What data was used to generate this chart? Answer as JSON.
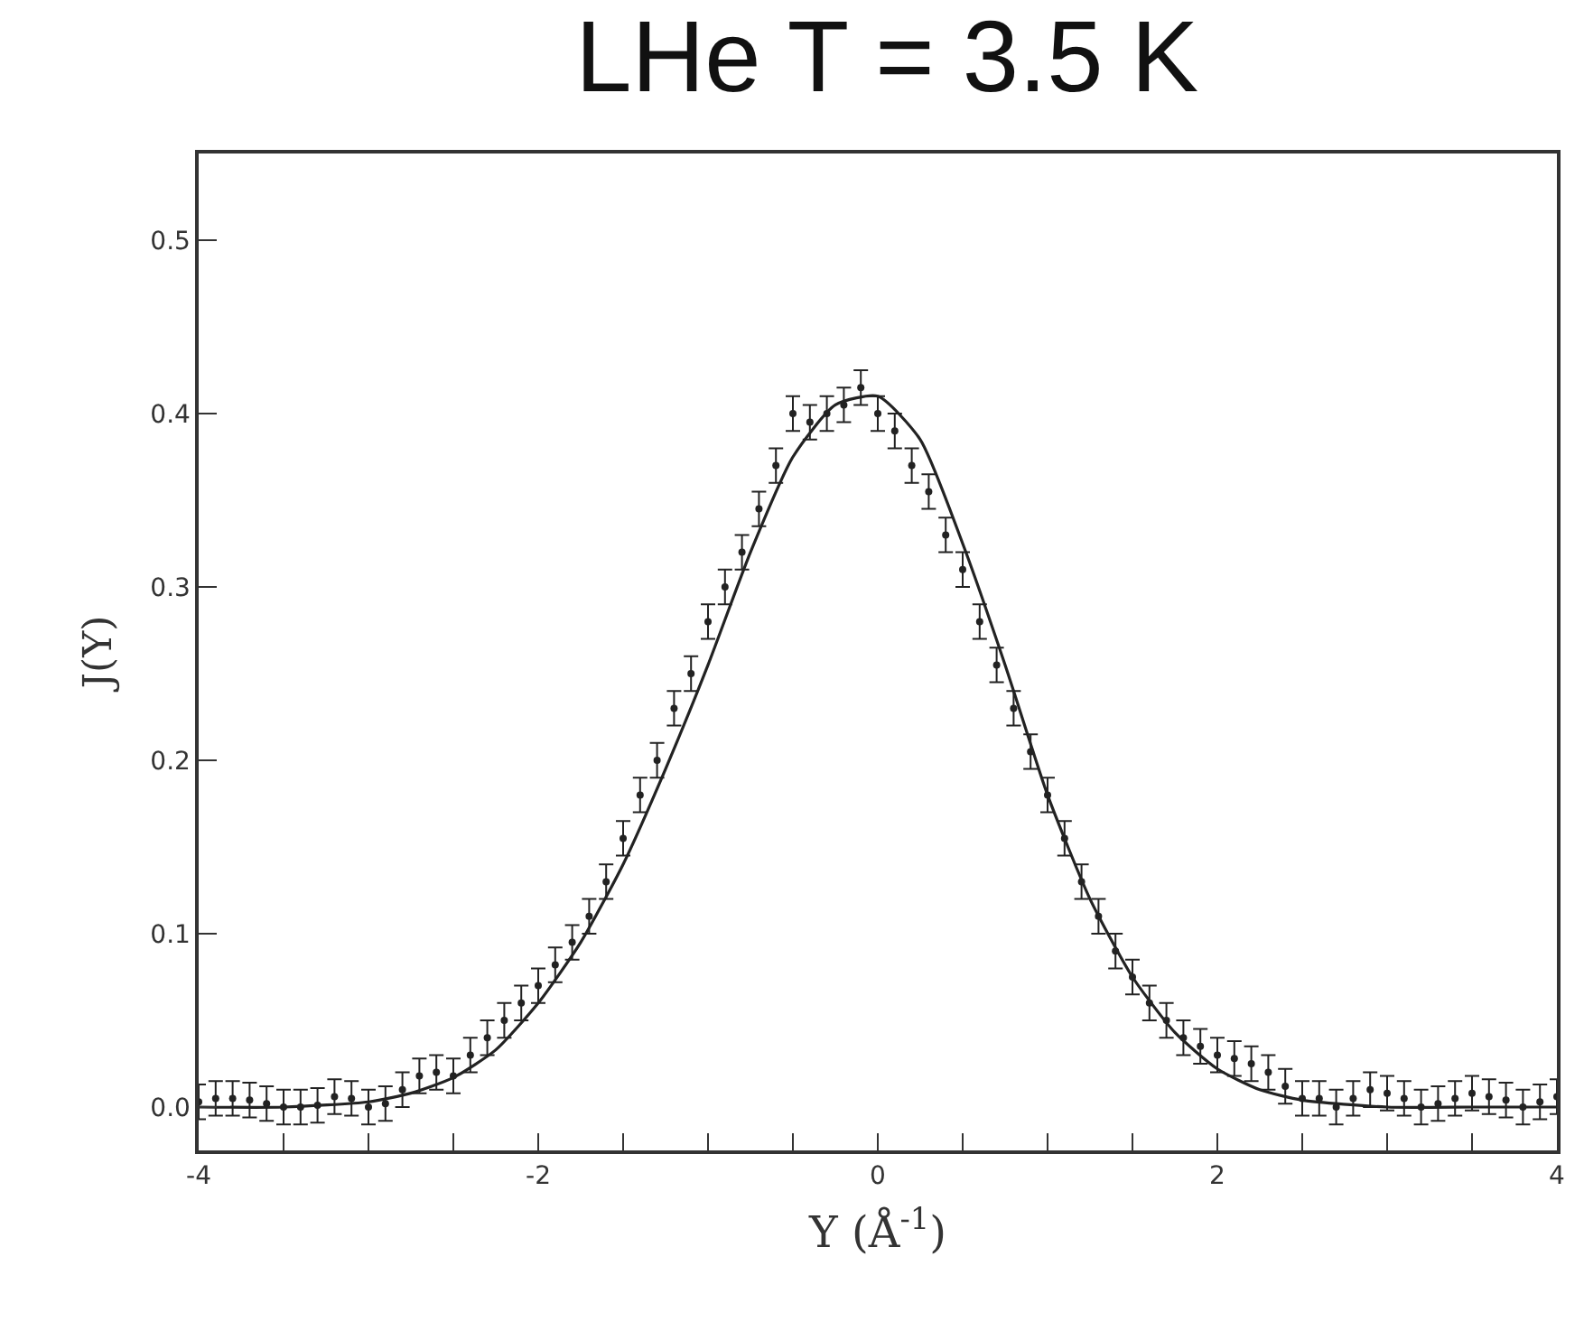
{
  "chart_data": {
    "type": "scatter",
    "title": "LHe T = 3.5 K",
    "xlabel": "Y (Å$^{-1}$)",
    "ylabel": "J(Y)",
    "xlim": [
      -4,
      4
    ],
    "ylim": [
      -0.025,
      0.55
    ],
    "xticks": [
      -4,
      {
        "value": -3.5,
        "label": null
      },
      {
        "value": -3,
        "label": null
      },
      {
        "value": -2.5,
        "label": null
      },
      -2,
      {
        "value": -1.5,
        "label": null
      },
      {
        "value": -1,
        "label": null
      },
      {
        "value": -0.5,
        "label": null
      },
      0,
      {
        "value": 0.5,
        "label": null
      },
      {
        "value": 1,
        "label": null
      },
      {
        "value": 1.5,
        "label": null
      },
      2,
      {
        "value": 2.5,
        "label": null
      },
      {
        "value": 3,
        "label": null
      },
      {
        "value": 3.5,
        "label": null
      },
      4
    ],
    "yticks": [
      {
        "value": 0,
        "label": "0.0"
      },
      0.1,
      0.2,
      0.3,
      0.4,
      0.5
    ],
    "marker": "circle",
    "series": [
      {
        "color": "#222222",
        "x": [
          -4.0,
          -3.9,
          -3.8,
          -3.7,
          -3.6,
          -3.5,
          -3.4,
          -3.3,
          -3.2,
          -3.1,
          -3.0,
          -2.9,
          -2.8,
          -2.7,
          -2.6,
          -2.5,
          -2.4,
          -2.3,
          -2.2,
          -2.1,
          -2.0,
          -1.9,
          -1.8,
          -1.7,
          -1.6,
          -1.5,
          -1.4,
          -1.3,
          -1.2,
          -1.1,
          -1.0,
          -0.9,
          -0.8,
          -0.7,
          -0.6,
          -0.5,
          -0.4,
          -0.3,
          -0.2,
          -0.1,
          0.0,
          0.1,
          0.2,
          0.3,
          0.4,
          0.5,
          0.6,
          0.7,
          0.8,
          0.9,
          1.0,
          1.1,
          1.2,
          1.3,
          1.4,
          1.5,
          1.6,
          1.7,
          1.8,
          1.9,
          2.0,
          2.1,
          2.2,
          2.3,
          2.4,
          2.5,
          2.6,
          2.7,
          2.8,
          2.9,
          3.0,
          3.1,
          3.2,
          3.3,
          3.4,
          3.5,
          3.6,
          3.7,
          3.8,
          3.9,
          4.0
        ],
        "values": [
          0.003,
          0.005,
          0.005,
          0.004,
          0.002,
          0.0,
          0.0,
          0.001,
          0.006,
          0.005,
          0.0,
          0.002,
          0.01,
          0.018,
          0.02,
          0.018,
          0.03,
          0.04,
          0.05,
          0.06,
          0.07,
          0.082,
          0.095,
          0.11,
          0.13,
          0.155,
          0.18,
          0.2,
          0.23,
          0.25,
          0.28,
          0.3,
          0.32,
          0.345,
          0.37,
          0.4,
          0.395,
          0.4,
          0.405,
          0.415,
          0.4,
          0.39,
          0.37,
          0.355,
          0.33,
          0.31,
          0.28,
          0.255,
          0.23,
          0.205,
          0.18,
          0.155,
          0.13,
          0.11,
          0.09,
          0.075,
          0.06,
          0.05,
          0.04,
          0.035,
          0.03,
          0.028,
          0.025,
          0.02,
          0.012,
          0.005,
          0.005,
          0.0,
          0.005,
          0.01,
          0.008,
          0.005,
          0.0,
          0.002,
          0.005,
          0.008,
          0.006,
          0.004,
          0.0,
          0.003,
          0.006
        ],
        "errors": [
          0.01,
          0.01,
          0.01,
          0.01,
          0.01,
          0.01,
          0.01,
          0.01,
          0.01,
          0.01,
          0.01,
          0.01,
          0.01,
          0.01,
          0.01,
          0.01,
          0.01,
          0.01,
          0.01,
          0.01,
          0.01,
          0.01,
          0.01,
          0.01,
          0.01,
          0.01,
          0.01,
          0.01,
          0.01,
          0.01,
          0.01,
          0.01,
          0.01,
          0.01,
          0.01,
          0.01,
          0.01,
          0.01,
          0.01,
          0.01,
          0.01,
          0.01,
          0.01,
          0.01,
          0.01,
          0.01,
          0.01,
          0.01,
          0.01,
          0.01,
          0.01,
          0.01,
          0.01,
          0.01,
          0.01,
          0.01,
          0.01,
          0.01,
          0.01,
          0.01,
          0.01,
          0.01,
          0.01,
          0.01,
          0.01,
          0.01,
          0.01,
          0.01,
          0.01,
          0.01,
          0.01,
          0.01,
          0.01,
          0.01,
          0.01,
          0.01,
          0.01,
          0.01,
          0.01,
          0.01,
          0.01
        ]
      },
      {
        "type": "line",
        "color": "#222222",
        "marker": "none",
        "line_style": "solid",
        "x": [
          -4,
          -3.5,
          -3,
          -2.75,
          -2.5,
          -2.25,
          -2,
          -1.75,
          -1.5,
          -1.25,
          -1,
          -0.75,
          -0.5,
          -0.25,
          0,
          0.25,
          0.5,
          0.75,
          1,
          1.25,
          1.5,
          1.75,
          2,
          2.25,
          2.5,
          3,
          3.5,
          4
        ],
        "values": [
          0.0,
          0.0,
          0.003,
          0.008,
          0.017,
          0.033,
          0.06,
          0.095,
          0.14,
          0.195,
          0.255,
          0.32,
          0.375,
          0.405,
          0.41,
          0.385,
          0.325,
          0.255,
          0.18,
          0.12,
          0.075,
          0.043,
          0.022,
          0.01,
          0.004,
          0.0,
          0.0,
          0.0
        ]
      }
    ]
  }
}
